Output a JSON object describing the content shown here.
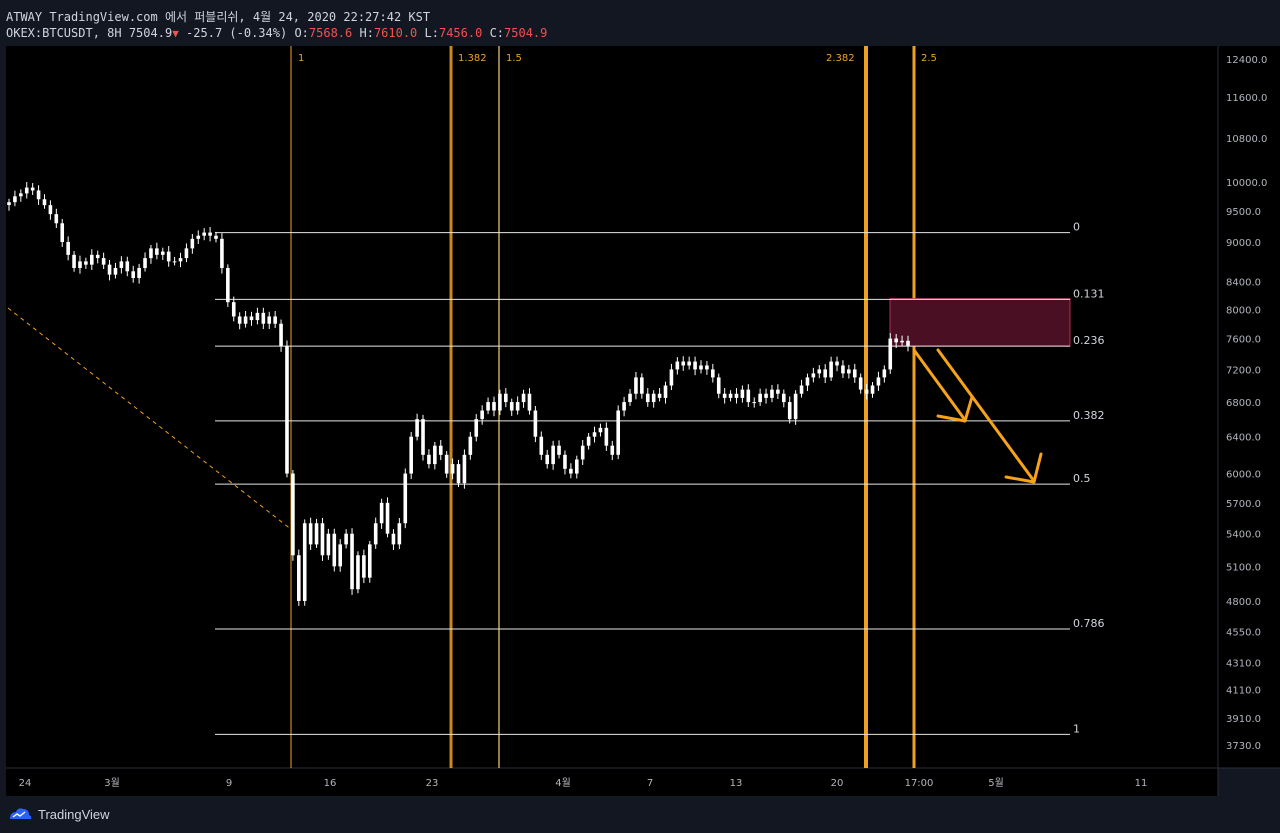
{
  "header": {
    "line1": "ATWAY TradingView.com 에서 퍼블리쉬, 4월 24, 2020 22:27:42 KST",
    "symbol": "OKEX:BTCUSDT, 8H",
    "last": "7504.9",
    "change_arrow": "▼",
    "change": "-25.7 (-0.34%)",
    "o_label": "O:",
    "o_value": "7568.6",
    "h_label": "H:",
    "h_value": "7610.0",
    "l_label": "L:",
    "l_value": "7456.0",
    "c_label": "C:",
    "c_value": "7504.9"
  },
  "footer": {
    "brand": "TradingView"
  },
  "colors": {
    "background": "#000000",
    "frame": "#131722",
    "candle": "#ffffff",
    "fib_time": "#f0a020",
    "arrow": "#f7a21b",
    "zone": "#4a0f22"
  },
  "chart_data": {
    "type": "candlestick",
    "symbol": "OKEX:BTCUSDT",
    "interval": "8H",
    "y_scale": "log",
    "ylim": [
      3600,
      12800
    ],
    "y_ticks": [
      12400,
      11600,
      10800,
      10000,
      9500,
      9000,
      8400,
      8000,
      7600,
      7200,
      6800,
      6400,
      6000,
      5700,
      5400,
      5100,
      4800,
      4550,
      4310,
      4110,
      3910,
      3730
    ],
    "x_ticks": [
      "24",
      "3월",
      "9",
      "16",
      "23",
      "4월",
      "7",
      "13",
      "20",
      "17:00",
      "5월",
      "11"
    ],
    "fib_retracement": [
      {
        "label": "0",
        "price": 9150
      },
      {
        "label": "0.131",
        "price": 8140
      },
      {
        "label": "0.236",
        "price": 7500
      },
      {
        "label": "0.382",
        "price": 6580
      },
      {
        "label": "0.5",
        "price": 5890
      },
      {
        "label": "0.786",
        "price": 4570
      },
      {
        "label": "1",
        "price": 3800
      }
    ],
    "fib_time_zones": [
      "1",
      "1.382",
      "1.5",
      "2.382",
      "2.5"
    ],
    "resistance_zone": {
      "top": 8150,
      "bottom": 7500
    },
    "candles_close": [
      9650,
      9750,
      9800,
      9900,
      9850,
      9700,
      9600,
      9450,
      9300,
      9000,
      8800,
      8600,
      8700,
      8650,
      8800,
      8750,
      8650,
      8500,
      8600,
      8700,
      8550,
      8450,
      8600,
      8750,
      8900,
      8800,
      8850,
      8700,
      8700,
      8750,
      8900,
      9050,
      9100,
      9150,
      9100,
      9050,
      8600,
      8100,
      7900,
      7800,
      7900,
      7850,
      7950,
      7800,
      7900,
      7800,
      7500,
      6000,
      5200,
      4800,
      5500,
      5300,
      5500,
      5200,
      5400,
      5100,
      5300,
      5400,
      4900,
      5200,
      5000,
      5300,
      5500,
      5700,
      5400,
      5300,
      5500,
      6000,
      6400,
      6600,
      6200,
      6100,
      6300,
      6200,
      6000,
      6100,
      5900,
      6200,
      6400,
      6600,
      6700,
      6800,
      6700,
      6900,
      6800,
      6700,
      6800,
      6900,
      6700,
      6400,
      6200,
      6100,
      6300,
      6200,
      6050,
      6000,
      6150,
      6300,
      6400,
      6450,
      6500,
      6300,
      6200,
      6700,
      6800,
      6900,
      7100,
      6900,
      6800,
      6900,
      6850,
      7000,
      7200,
      7300,
      7250,
      7300,
      7200,
      7250,
      7200,
      7100,
      6900,
      6850,
      6900,
      6850,
      6950,
      6800,
      6800,
      6900,
      6850,
      6950,
      6900,
      6800,
      6600,
      6900,
      7000,
      7100,
      7150,
      7200,
      7100,
      7300,
      7250,
      7150,
      7200,
      7100,
      6950,
      6900,
      7000,
      7100,
      7200,
      7600,
      7550,
      7570,
      7504.9
    ]
  }
}
